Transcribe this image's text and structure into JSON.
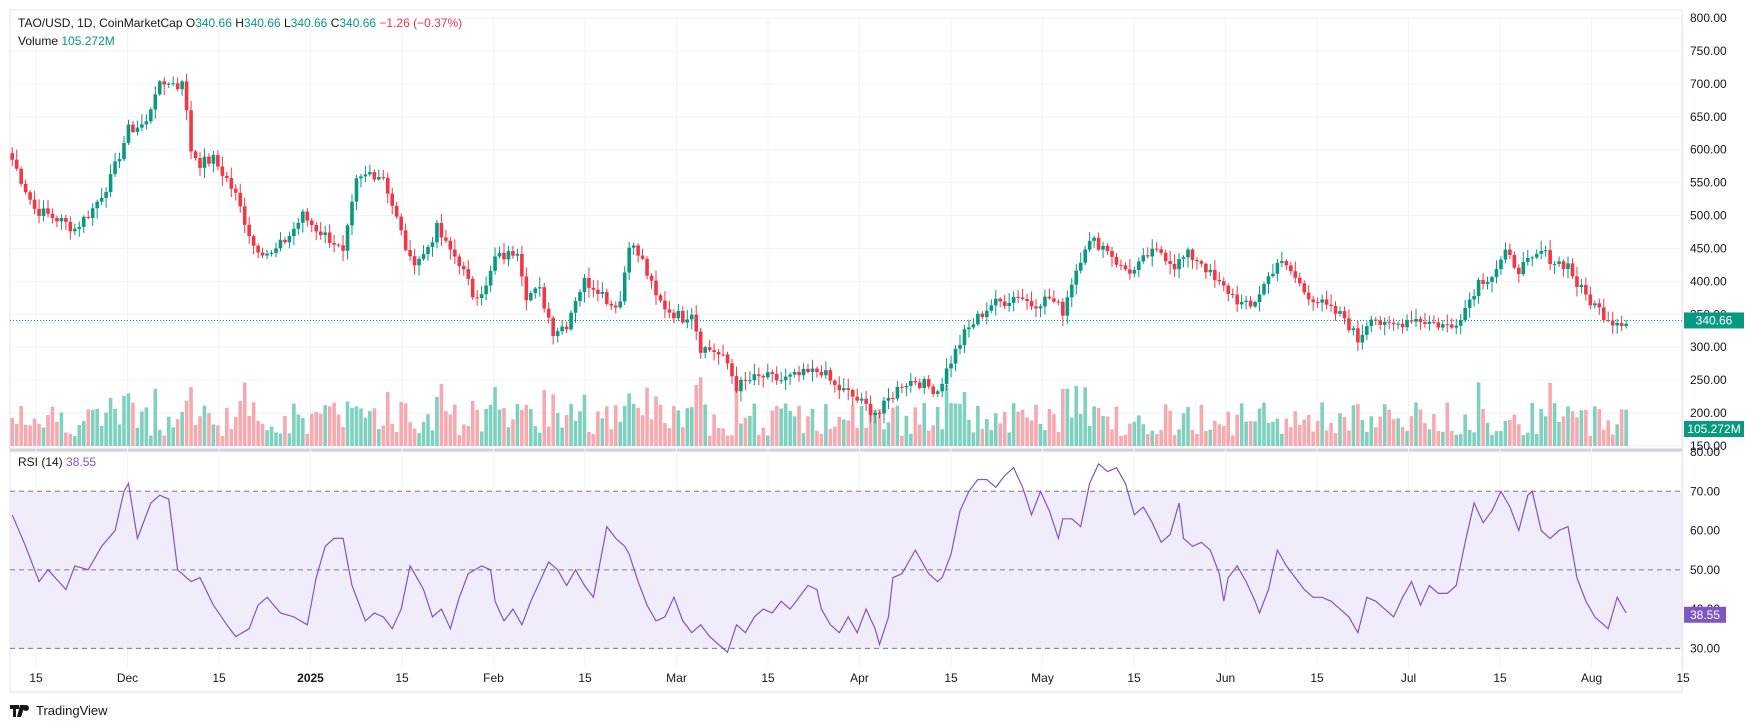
{
  "header": {
    "symbol": "TAO/USD, 1D, CoinMarketCap",
    "o_label": "O",
    "o": "340.66",
    "h_label": "H",
    "h": "340.66",
    "l_label": "L",
    "l": "340.66",
    "c_label": "C",
    "c": "340.66",
    "change": "−1.26 (−0.37%)",
    "volume_label": "Volume",
    "volume": "105.272M"
  },
  "rsi_legend": {
    "label": "RSI (14)",
    "value": "38.55"
  },
  "branding": {
    "name": "TradingView"
  },
  "colors": {
    "up": "#089981",
    "down": "#f23645",
    "up_vol": "#7fd1bf",
    "down_vol": "#f7a9b0",
    "rsi": "#7e57c2",
    "rsi_band": "#f1ecfa"
  },
  "chart_data": [
    {
      "type": "candlestick",
      "title": "TAO/USD, 1D, CoinMarketCap",
      "ylim": [
        150,
        800
      ],
      "y_ticks": [
        "800.00",
        "750.00",
        "700.00",
        "650.00",
        "600.00",
        "550.00",
        "500.00",
        "450.00",
        "400.00",
        "350.00",
        "300.00",
        "250.00",
        "200.00",
        "150.00"
      ],
      "x_tick_labels": [
        "15",
        "Dec",
        "15",
        "2025",
        "15",
        "Feb",
        "15",
        "Mar",
        "15",
        "Apr",
        "15",
        "May",
        "15",
        "Jun",
        "15",
        "Jul",
        "15",
        "Aug",
        "15"
      ],
      "last_price_label": "340.66",
      "volume_label": "105.272M",
      "close_keypoints": [
        [
          0,
          585
        ],
        [
          5,
          510
        ],
        [
          10,
          495
        ],
        [
          14,
          480
        ],
        [
          18,
          510
        ],
        [
          22,
          555
        ],
        [
          26,
          630
        ],
        [
          30,
          640
        ],
        [
          32,
          690
        ],
        [
          35,
          705
        ],
        [
          37,
          695
        ],
        [
          38,
          710
        ],
        [
          40,
          600
        ],
        [
          42,
          580
        ],
        [
          45,
          585
        ],
        [
          48,
          555
        ],
        [
          50,
          530
        ],
        [
          54,
          455
        ],
        [
          58,
          440
        ],
        [
          62,
          470
        ],
        [
          65,
          500
        ],
        [
          68,
          480
        ],
        [
          72,
          460
        ],
        [
          74,
          440
        ],
        [
          77,
          550
        ],
        [
          80,
          565
        ],
        [
          83,
          560
        ],
        [
          86,
          495
        ],
        [
          89,
          430
        ],
        [
          92,
          440
        ],
        [
          95,
          480
        ],
        [
          97,
          455
        ],
        [
          100,
          430
        ],
        [
          103,
          380
        ],
        [
          106,
          390
        ],
        [
          108,
          435
        ],
        [
          111,
          440
        ],
        [
          113,
          450
        ],
        [
          115,
          380
        ],
        [
          118,
          385
        ],
        [
          121,
          325
        ],
        [
          124,
          335
        ],
        [
          126,
          375
        ],
        [
          128,
          400
        ],
        [
          131,
          390
        ],
        [
          134,
          365
        ],
        [
          136,
          370
        ],
        [
          138,
          460
        ],
        [
          141,
          430
        ],
        [
          144,
          375
        ],
        [
          147,
          355
        ],
        [
          150,
          345
        ],
        [
          152,
          355
        ],
        [
          154,
          300
        ],
        [
          157,
          295
        ],
        [
          160,
          275
        ],
        [
          162,
          240
        ],
        [
          165,
          250
        ],
        [
          168,
          255
        ],
        [
          172,
          250
        ],
        [
          175,
          255
        ],
        [
          178,
          260
        ],
        [
          181,
          265
        ],
        [
          184,
          240
        ],
        [
          187,
          230
        ],
        [
          190,
          215
        ],
        [
          192,
          205
        ],
        [
          194,
          200
        ],
        [
          196,
          220
        ],
        [
          199,
          245
        ],
        [
          202,
          250
        ],
        [
          205,
          240
        ],
        [
          207,
          235
        ],
        [
          210,
          280
        ],
        [
          213,
          320
        ],
        [
          216,
          345
        ],
        [
          219,
          365
        ],
        [
          222,
          370
        ],
        [
          225,
          380
        ],
        [
          228,
          365
        ],
        [
          232,
          375
        ],
        [
          235,
          355
        ],
        [
          237,
          400
        ],
        [
          240,
          455
        ],
        [
          242,
          460
        ],
        [
          245,
          450
        ],
        [
          248,
          420
        ],
        [
          251,
          415
        ],
        [
          254,
          440
        ],
        [
          257,
          445
        ],
        [
          260,
          425
        ],
        [
          263,
          440
        ],
        [
          266,
          430
        ],
        [
          269,
          400
        ],
        [
          272,
          385
        ],
        [
          275,
          365
        ],
        [
          277,
          360
        ],
        [
          280,
          395
        ],
        [
          283,
          430
        ],
        [
          286,
          415
        ],
        [
          289,
          385
        ],
        [
          292,
          370
        ],
        [
          295,
          355
        ],
        [
          298,
          345
        ],
        [
          301,
          310
        ],
        [
          304,
          350
        ],
        [
          307,
          330
        ],
        [
          310,
          335
        ],
        [
          313,
          345
        ],
        [
          316,
          340
        ],
        [
          319,
          335
        ],
        [
          322,
          330
        ],
        [
          325,
          360
        ],
        [
          328,
          400
        ],
        [
          331,
          410
        ],
        [
          334,
          440
        ],
        [
          337,
          420
        ],
        [
          340,
          430
        ],
        [
          342,
          445
        ],
        [
          345,
          430
        ],
        [
          348,
          425
        ],
        [
          350,
          395
        ],
        [
          353,
          370
        ],
        [
          356,
          350
        ],
        [
          358,
          340
        ],
        [
          361,
          340
        ]
      ]
    },
    {
      "type": "line",
      "title": "RSI (14)",
      "ylim": [
        25,
        80
      ],
      "y_ticks": [
        "80.00",
        "70.00",
        "60.00",
        "50.00",
        "40.00",
        "30.00"
      ],
      "bands": [
        30,
        50,
        70
      ],
      "last_value_label": "38.55",
      "keypoints": [
        [
          0,
          64
        ],
        [
          3,
          56
        ],
        [
          6,
          47
        ],
        [
          8,
          50
        ],
        [
          12,
          45
        ],
        [
          14,
          51
        ],
        [
          17,
          50
        ],
        [
          20,
          56
        ],
        [
          23,
          60
        ],
        [
          25,
          70
        ],
        [
          26,
          72
        ],
        [
          28,
          58
        ],
        [
          31,
          67
        ],
        [
          33,
          69
        ],
        [
          35,
          68
        ],
        [
          37,
          50
        ],
        [
          40,
          47
        ],
        [
          42,
          48
        ],
        [
          45,
          41
        ],
        [
          48,
          36
        ],
        [
          50,
          33
        ],
        [
          53,
          35
        ],
        [
          55,
          41
        ],
        [
          57,
          43
        ],
        [
          60,
          39
        ],
        [
          63,
          38
        ],
        [
          66,
          36
        ],
        [
          68,
          48
        ],
        [
          70,
          56
        ],
        [
          72,
          58
        ],
        [
          74,
          58
        ],
        [
          76,
          46
        ],
        [
          79,
          37
        ],
        [
          81,
          39
        ],
        [
          83,
          38
        ],
        [
          85,
          35
        ],
        [
          87,
          40
        ],
        [
          89,
          51
        ],
        [
          92,
          45
        ],
        [
          94,
          38
        ],
        [
          96,
          40
        ],
        [
          98,
          35
        ],
        [
          100,
          43
        ],
        [
          102,
          49
        ],
        [
          105,
          51
        ],
        [
          107,
          50
        ],
        [
          108,
          42
        ],
        [
          110,
          37
        ],
        [
          112,
          40
        ],
        [
          114,
          36
        ],
        [
          116,
          42
        ],
        [
          118,
          47
        ],
        [
          120,
          52
        ],
        [
          122,
          50
        ],
        [
          124,
          46
        ],
        [
          126,
          50
        ],
        [
          128,
          46
        ],
        [
          130,
          43
        ],
        [
          132,
          55
        ],
        [
          133,
          61
        ],
        [
          135,
          58
        ],
        [
          137,
          56
        ],
        [
          138,
          54
        ],
        [
          140,
          47
        ],
        [
          142,
          41
        ],
        [
          144,
          37
        ],
        [
          146,
          38
        ],
        [
          148,
          43
        ],
        [
          150,
          37
        ],
        [
          152,
          34
        ],
        [
          154,
          36
        ],
        [
          156,
          33
        ],
        [
          158,
          31
        ],
        [
          160,
          29
        ],
        [
          162,
          36
        ],
        [
          164,
          34
        ],
        [
          166,
          38
        ],
        [
          168,
          40
        ],
        [
          170,
          39
        ],
        [
          172,
          42
        ],
        [
          174,
          40
        ],
        [
          176,
          43
        ],
        [
          178,
          46
        ],
        [
          180,
          45
        ],
        [
          181,
          40
        ],
        [
          183,
          36
        ],
        [
          185,
          34
        ],
        [
          187,
          38
        ],
        [
          189,
          34
        ],
        [
          191,
          40
        ],
        [
          193,
          35
        ],
        [
          194,
          31
        ],
        [
          196,
          38
        ],
        [
          197,
          48
        ],
        [
          199,
          49
        ],
        [
          201,
          53
        ],
        [
          202,
          55
        ],
        [
          205,
          49
        ],
        [
          207,
          47
        ],
        [
          208,
          48
        ],
        [
          210,
          54
        ],
        [
          212,
          65
        ],
        [
          214,
          70
        ],
        [
          216,
          73
        ],
        [
          218,
          73
        ],
        [
          220,
          71
        ],
        [
          222,
          74
        ],
        [
          224,
          76
        ],
        [
          226,
          71
        ],
        [
          228,
          64
        ],
        [
          230,
          70
        ],
        [
          232,
          65
        ],
        [
          234,
          58
        ],
        [
          235,
          63
        ],
        [
          237,
          63
        ],
        [
          239,
          61
        ],
        [
          241,
          72
        ],
        [
          243,
          77
        ],
        [
          245,
          75
        ],
        [
          247,
          76
        ],
        [
          249,
          72
        ],
        [
          251,
          64
        ],
        [
          253,
          66
        ],
        [
          255,
          62
        ],
        [
          257,
          57
        ],
        [
          259,
          59
        ],
        [
          261,
          67
        ],
        [
          262,
          58
        ],
        [
          264,
          56
        ],
        [
          266,
          57
        ],
        [
          268,
          55
        ],
        [
          270,
          49
        ],
        [
          271,
          42
        ],
        [
          272,
          48
        ],
        [
          274,
          51
        ],
        [
          276,
          47
        ],
        [
          278,
          42
        ],
        [
          279,
          39
        ],
        [
          281,
          45
        ],
        [
          283,
          55
        ],
        [
          285,
          51
        ],
        [
          287,
          48
        ],
        [
          289,
          45
        ],
        [
          291,
          43
        ],
        [
          293,
          43
        ],
        [
          295,
          42
        ],
        [
          297,
          40
        ],
        [
          299,
          38
        ],
        [
          301,
          34
        ],
        [
          303,
          43
        ],
        [
          305,
          42
        ],
        [
          307,
          40
        ],
        [
          309,
          38
        ],
        [
          311,
          43
        ],
        [
          313,
          47
        ],
        [
          315,
          41
        ],
        [
          317,
          46
        ],
        [
          319,
          44
        ],
        [
          321,
          44
        ],
        [
          323,
          46
        ],
        [
          325,
          57
        ],
        [
          327,
          67
        ],
        [
          329,
          62
        ],
        [
          331,
          65
        ],
        [
          333,
          70
        ],
        [
          335,
          66
        ],
        [
          337,
          60
        ],
        [
          339,
          69
        ],
        [
          340,
          70
        ],
        [
          342,
          60
        ],
        [
          344,
          58
        ],
        [
          346,
          60
        ],
        [
          348,
          61
        ],
        [
          350,
          48
        ],
        [
          352,
          42
        ],
        [
          354,
          38
        ],
        [
          357,
          35
        ],
        [
          359,
          43
        ],
        [
          361,
          39
        ]
      ]
    }
  ]
}
